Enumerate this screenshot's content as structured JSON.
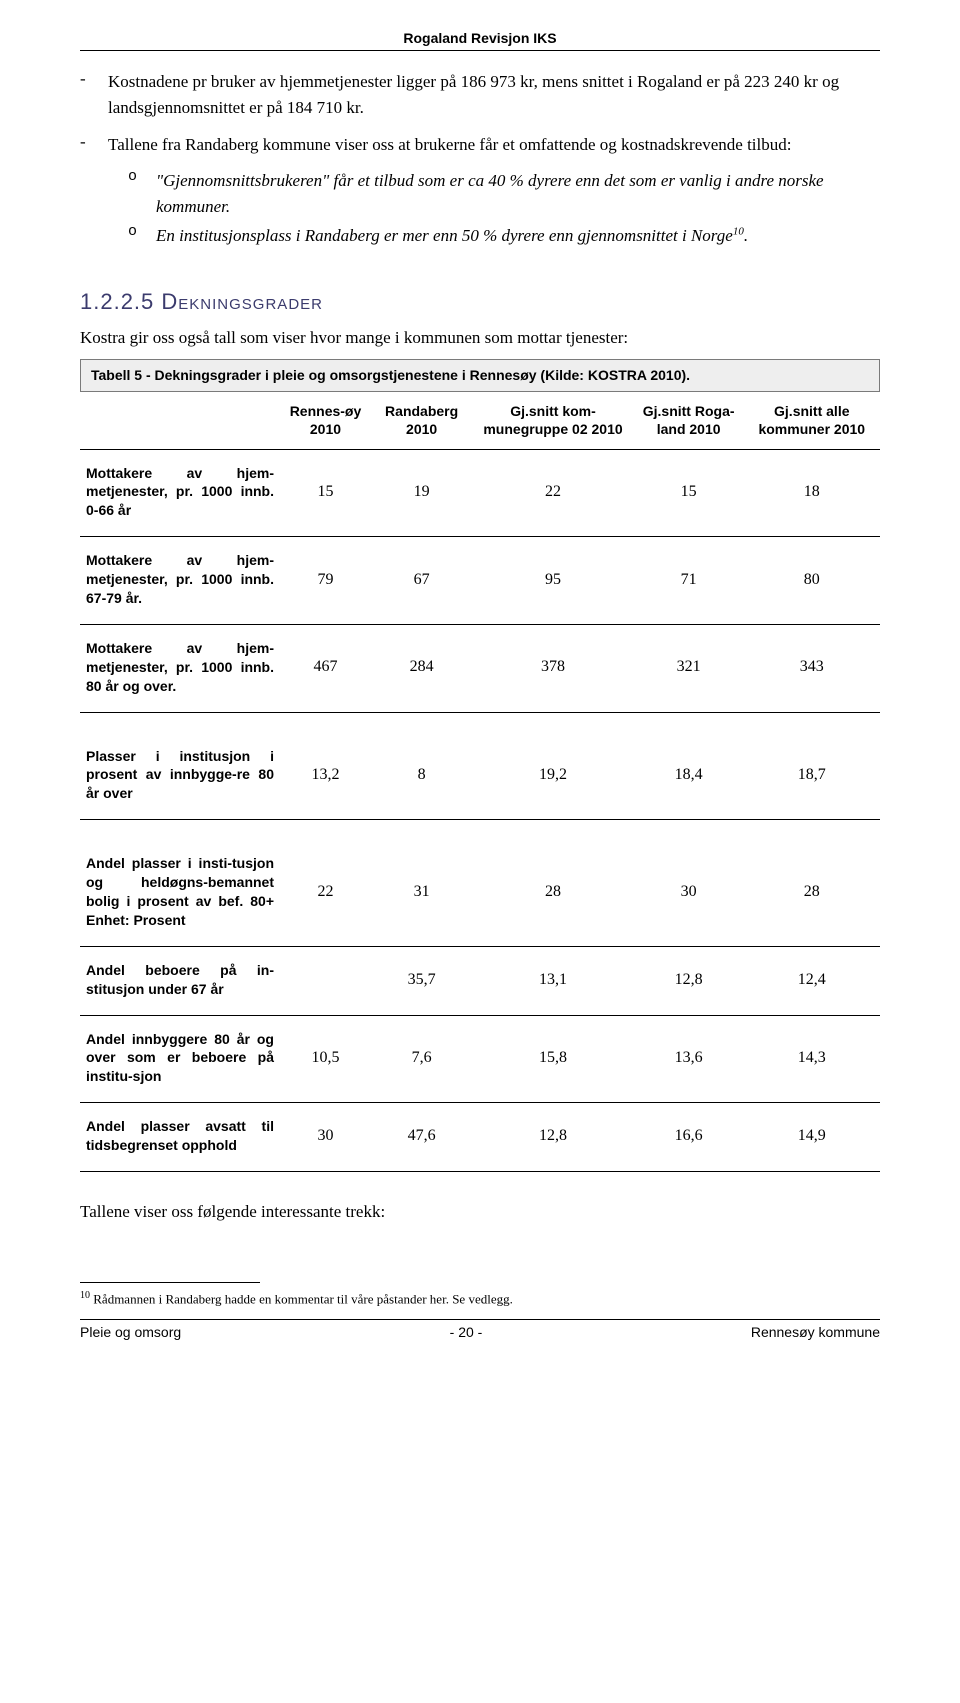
{
  "header": "Rogaland Revisjon IKS",
  "bullets": [
    "Kostnadene pr bruker av hjemmetjenester ligger på 186 973 kr, mens snittet i Rogaland er på 223 240 kr og landsgjennomsnittet er på 184 710 kr.",
    "Tallene fra Randaberg kommune viser oss at brukerne får et omfattende og kostnadskrevende tilbud:"
  ],
  "sub_bullets": [
    "\"Gjennomsnittsbrukeren\" får et tilbud som er ca 40 % dyrere enn det som er vanlig i andre norske kommuner.",
    "En institusjonsplass i Randaberg er mer enn 50 % dyrere enn gjennomsnittet i Norge"
  ],
  "sup_mark": "10",
  "section": {
    "number": "1.2.2.5",
    "title": "Dekningsgrader"
  },
  "intro": "Kostra gir oss også tall som viser hvor mange i kommunen som mottar tjenester:",
  "table_caption": "Tabell 5 - Dekningsgrader i  pleie og omsorgstjenestene i Rennesøy (Kilde: KOSTRA 2010).",
  "table": {
    "columns": [
      "Rennes-øy 2010",
      "Randaberg 2010",
      "Gj.snitt kom-munegruppe 02 2010",
      "Gj.snitt Roga-land 2010",
      "Gj.snitt alle kommuner 2010"
    ],
    "rows": [
      {
        "label": "Mottakere av hjem-metjenester, pr. 1000 innb. 0-66 år",
        "values": [
          "15",
          "19",
          "22",
          "15",
          "18"
        ]
      },
      {
        "label": "Mottakere av hjem-metjenester, pr. 1000 innb. 67-79 år.",
        "values": [
          "79",
          "67",
          "95",
          "71",
          "80"
        ]
      },
      {
        "label": "Mottakere av hjem-metjenester, pr. 1000 innb. 80 år og over.",
        "values": [
          "467",
          "284",
          "378",
          "321",
          "343"
        ]
      }
    ],
    "rows2": [
      {
        "label": "Plasser i institusjon i prosent av innbygge-re 80 år over",
        "values": [
          "13,2",
          "8",
          "19,2",
          "18,4",
          "18,7"
        ]
      }
    ],
    "rows3": [
      {
        "label": "Andel plasser i insti-tusjon og heldøgns-bemannet bolig i prosent av bef. 80+ Enhet: Prosent",
        "values": [
          "22",
          "31",
          "28",
          "30",
          "28"
        ]
      },
      {
        "label": "Andel beboere på in-stitusjon under 67 år",
        "values": [
          "",
          "35,7",
          "13,1",
          "12,8",
          "12,4"
        ]
      },
      {
        "label": "Andel innbyggere 80 år og over som er beboere på institu-sjon",
        "values": [
          "10,5",
          "7,6",
          "15,8",
          "13,6",
          "14,3"
        ]
      },
      {
        "label": "Andel plasser avsatt til tidsbegrenset opphold",
        "values": [
          "30",
          "47,6",
          "12,8",
          "16,6",
          "14,9"
        ]
      }
    ]
  },
  "closing": "Tallene viser oss følgende interessante trekk:",
  "footnote": {
    "num": "10",
    "text": "Rådmannen i Randaberg hadde en kommentar til våre påstander her. Se vedlegg."
  },
  "footer": {
    "left": "Pleie og omsorg",
    "center": "- 20 -",
    "right": "Rennesøy kommune"
  }
}
